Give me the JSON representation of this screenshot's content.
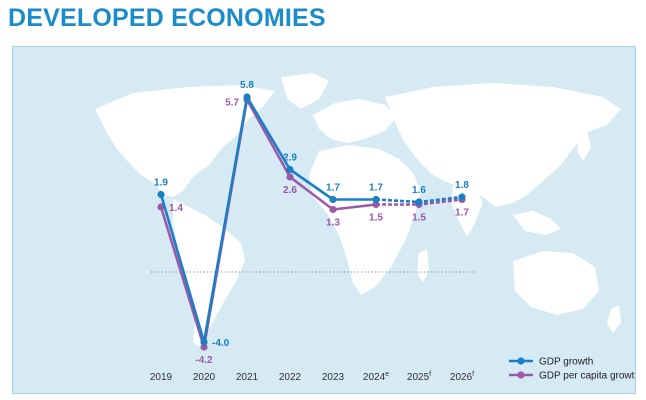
{
  "title": "DEVELOPED ECONOMIES",
  "colors": {
    "title": "#1a8ccc",
    "background": "#d6eaf4",
    "map": "#ffffff",
    "gdp": "#1a7fc4",
    "gdp_per_capita": "#9b59a8"
  },
  "chart_data": {
    "type": "line",
    "categories": [
      "2019",
      "2020",
      "2021",
      "2022",
      "2023",
      "2024",
      "2025",
      "2026"
    ],
    "category_superscripts": [
      "",
      "",
      "",
      "",
      "",
      "e",
      "f",
      "f"
    ],
    "series": [
      {
        "name": "GDP growth",
        "values": [
          1.9,
          -4.0,
          5.8,
          2.9,
          1.7,
          1.7,
          1.6,
          1.8
        ],
        "labels": [
          "1.9",
          "-4.0",
          "5.8",
          "2.9",
          "1.7",
          "1.7",
          "1.6",
          "1.8"
        ],
        "dashed_from_index": 5
      },
      {
        "name": "GDP per capita growth",
        "values": [
          1.4,
          -4.2,
          5.7,
          2.6,
          1.3,
          1.5,
          1.5,
          1.7
        ],
        "labels": [
          "1.4",
          "-4.2",
          "5.7",
          "2.6",
          "1.3",
          "1.5",
          "1.5",
          "1.7"
        ],
        "dashed_from_index": 5
      }
    ],
    "ylim": [
      -4.6,
      7
    ],
    "zero_line": true,
    "legend_position": "bottom-right",
    "grid": false
  }
}
